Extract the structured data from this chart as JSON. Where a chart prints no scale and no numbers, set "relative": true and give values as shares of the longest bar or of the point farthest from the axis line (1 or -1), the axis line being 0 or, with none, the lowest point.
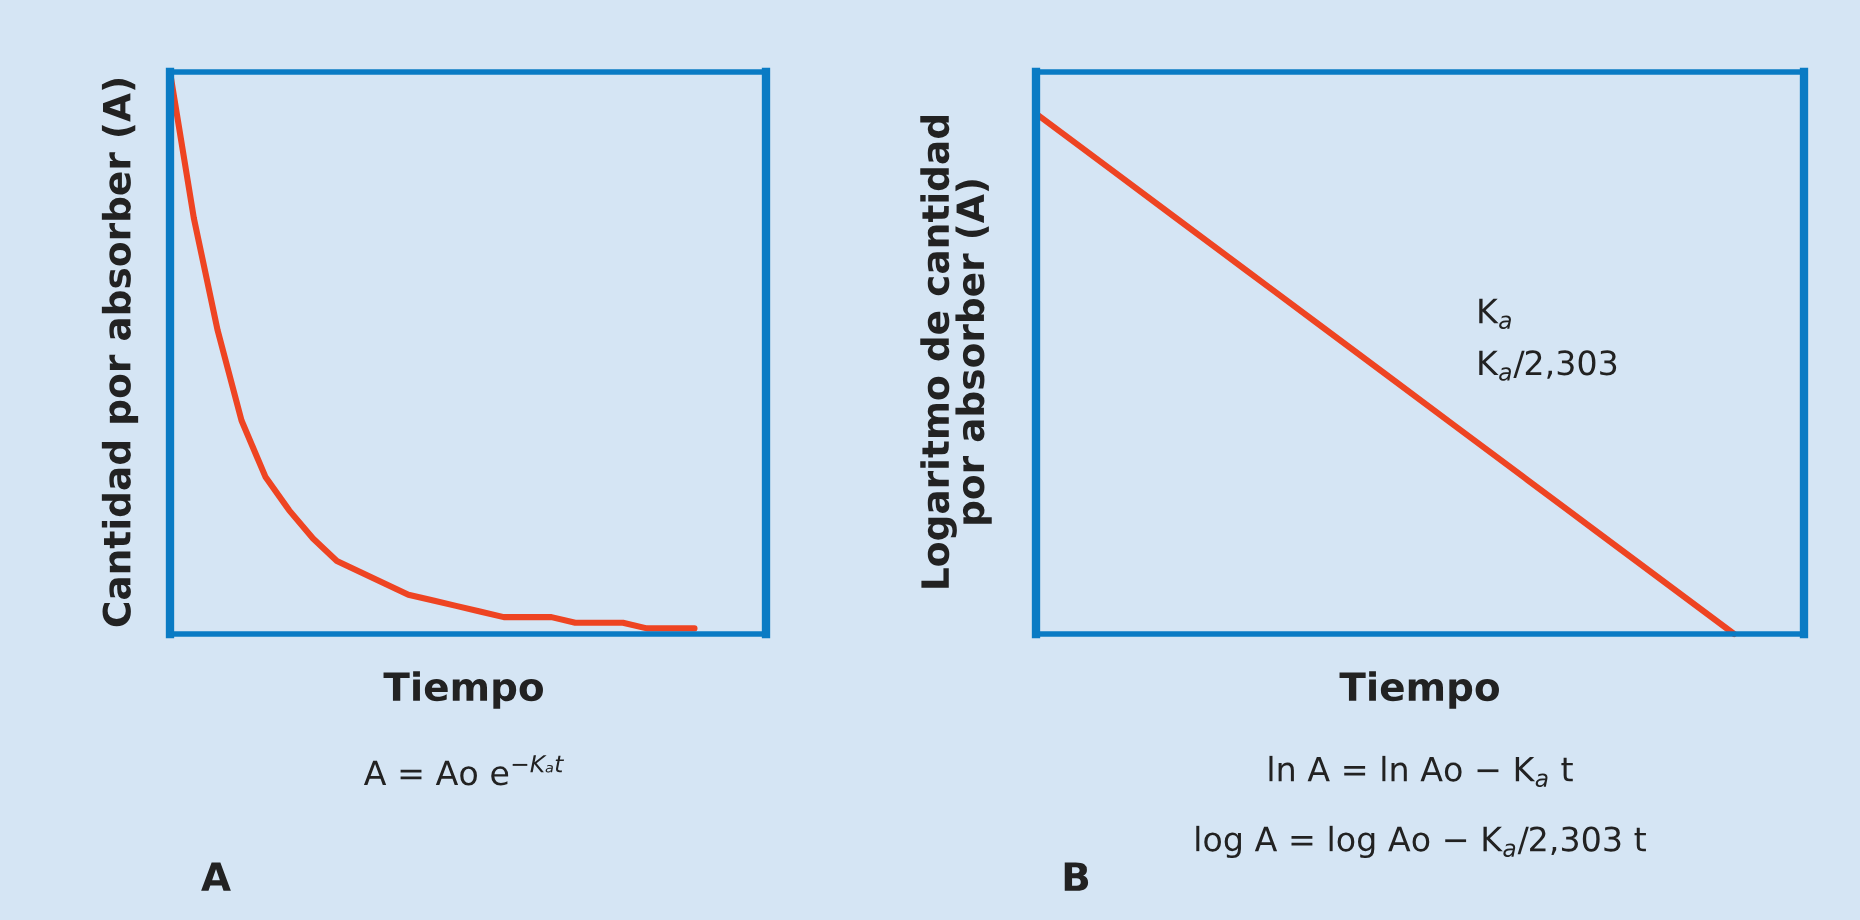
{
  "chart_data": [
    {
      "type": "line",
      "relative": true,
      "xlabel": "Tiempo",
      "ylabel": "Cantidad por absorber (A)",
      "categories": [
        null,
        null,
        null,
        null,
        null,
        null,
        null,
        null,
        null,
        null,
        null,
        null,
        null,
        null,
        null,
        null,
        null,
        null,
        null,
        null,
        null,
        null,
        null,
        null,
        null,
        null
      ],
      "tick_labels": false,
      "series": [
        {
          "color": "#ee4422",
          "values": [
            1,
            0.74,
            0.54,
            0.38,
            0.28,
            0.22,
            0.17,
            0.13,
            0.11,
            0.09,
            0.07,
            0.06,
            0.05,
            0.04,
            0.03,
            0.03,
            0.03,
            0.02,
            0.02,
            0.02,
            0.01,
            0.01,
            0.01,
            null,
            null,
            null
          ]
        }
      ],
      "annotations": [
        "A = Ao e$^{−Kₐt}$",
        "A"
      ]
    },
    {
      "type": "line",
      "relative": true,
      "xlabel": "Tiempo",
      "ylabel": "Logaritmo de cantidad\npor absorber (A)",
      "categories": [
        null,
        null,
        null,
        null,
        null,
        null,
        null,
        null,
        null,
        null,
        null,
        null
      ],
      "tick_labels": false,
      "series": [
        {
          "color": "#ee4422",
          "values": [
            1,
            0.9,
            0.8,
            0.7,
            0.6,
            0.5,
            0.4,
            0.3,
            0.2,
            0.1,
            0,
            null
          ]
        }
      ],
      "annotations": [
        "K$_{a}$",
        "K$_{a}$/2,303",
        "ln A = ln Ao − K$_{a}$ t",
        "log A = log Ao − K$_{a}$/2,303 t",
        "B"
      ]
    }
  ]
}
